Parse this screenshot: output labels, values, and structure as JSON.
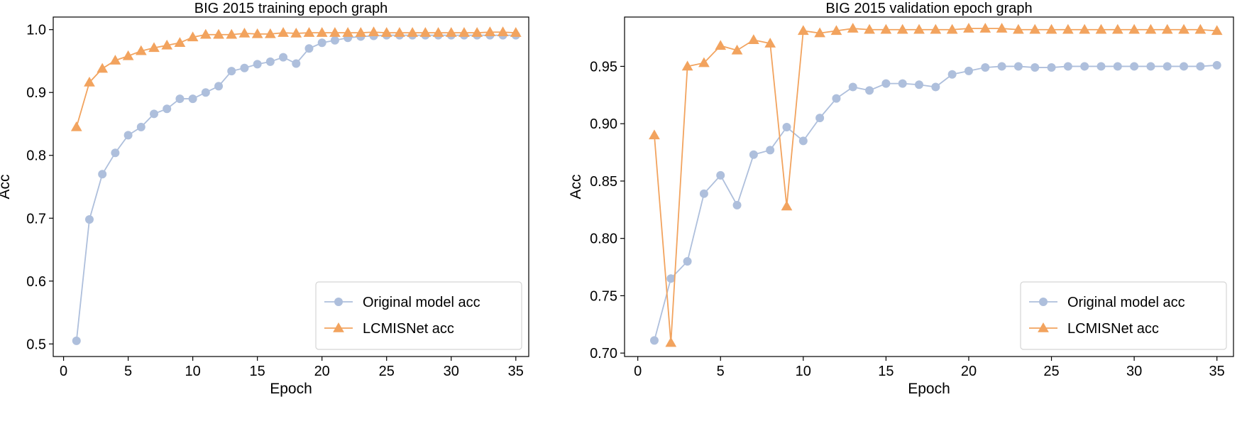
{
  "figure": {
    "background": "#ffffff"
  },
  "chart_data": [
    {
      "type": "line",
      "title": "BIG 2015 training epoch graph",
      "xlabel": "Epoch",
      "ylabel": "Acc",
      "xlim": [
        -0.8,
        36.0
      ],
      "ylim": [
        0.48,
        1.02
      ],
      "xticks": [
        0,
        5,
        10,
        15,
        20,
        25,
        30,
        35
      ],
      "yticks": [
        0.5,
        0.6,
        0.7,
        0.8,
        0.9,
        1.0
      ],
      "ytick_labels": [
        "0.5",
        "0.6",
        "0.7",
        "0.8",
        "0.9",
        "1.0"
      ],
      "grid": false,
      "legend_position": "lower-right",
      "x": [
        1,
        2,
        3,
        4,
        5,
        6,
        7,
        8,
        9,
        10,
        11,
        12,
        13,
        14,
        15,
        16,
        17,
        18,
        19,
        20,
        21,
        22,
        23,
        24,
        25,
        26,
        27,
        28,
        29,
        30,
        31,
        32,
        33,
        34,
        35
      ],
      "series": [
        {
          "name": "Original model acc",
          "color": "#aebfdc",
          "marker": "circle",
          "values": [
            0.505,
            0.698,
            0.77,
            0.804,
            0.832,
            0.845,
            0.866,
            0.874,
            0.89,
            0.89,
            0.9,
            0.91,
            0.934,
            0.939,
            0.945,
            0.949,
            0.956,
            0.946,
            0.97,
            0.979,
            0.983,
            0.987,
            0.989,
            0.99,
            0.991,
            0.991,
            0.991,
            0.991,
            0.991,
            0.991,
            0.991,
            0.991,
            0.991,
            0.991,
            0.991
          ]
        },
        {
          "name": "LCMISNet acc",
          "color": "#f2a35e",
          "marker": "triangle",
          "values": [
            0.845,
            0.916,
            0.938,
            0.951,
            0.958,
            0.966,
            0.971,
            0.975,
            0.979,
            0.988,
            0.992,
            0.992,
            0.992,
            0.994,
            0.993,
            0.993,
            0.995,
            0.994,
            0.995,
            0.995,
            0.995,
            0.995,
            0.995,
            0.996,
            0.995,
            0.995,
            0.995,
            0.995,
            0.995,
            0.995,
            0.995,
            0.995,
            0.996,
            0.996,
            0.995
          ]
        }
      ]
    },
    {
      "type": "line",
      "title": "BIG 2015 validation epoch graph",
      "xlabel": "Epoch",
      "ylabel": "Acc",
      "xlim": [
        -0.8,
        36.0
      ],
      "ylim": [
        0.697,
        0.993
      ],
      "xticks": [
        0,
        5,
        10,
        15,
        20,
        25,
        30,
        35
      ],
      "yticks": [
        0.7,
        0.75,
        0.8,
        0.85,
        0.9,
        0.95
      ],
      "ytick_labels": [
        "0.70",
        "0.75",
        "0.80",
        "0.85",
        "0.90",
        "0.95"
      ],
      "grid": false,
      "legend_position": "lower-right",
      "x": [
        1,
        2,
        3,
        4,
        5,
        6,
        7,
        8,
        9,
        10,
        11,
        12,
        13,
        14,
        15,
        16,
        17,
        18,
        19,
        20,
        21,
        22,
        23,
        24,
        25,
        26,
        27,
        28,
        29,
        30,
        31,
        32,
        33,
        34,
        35
      ],
      "series": [
        {
          "name": "Original model acc",
          "color": "#aebfdc",
          "marker": "circle",
          "values": [
            0.711,
            0.765,
            0.78,
            0.839,
            0.855,
            0.829,
            0.873,
            0.877,
            0.897,
            0.885,
            0.905,
            0.922,
            0.932,
            0.929,
            0.935,
            0.935,
            0.934,
            0.932,
            0.943,
            0.946,
            0.949,
            0.95,
            0.95,
            0.949,
            0.949,
            0.95,
            0.95,
            0.95,
            0.95,
            0.95,
            0.95,
            0.95,
            0.95,
            0.95,
            0.951
          ]
        },
        {
          "name": "LCMISNet acc",
          "color": "#f2a35e",
          "marker": "triangle",
          "values": [
            0.89,
            0.709,
            0.95,
            0.953,
            0.968,
            0.964,
            0.973,
            0.97,
            0.828,
            0.981,
            0.979,
            0.981,
            0.983,
            0.982,
            0.982,
            0.982,
            0.982,
            0.982,
            0.982,
            0.983,
            0.983,
            0.983,
            0.982,
            0.982,
            0.982,
            0.982,
            0.982,
            0.982,
            0.982,
            0.982,
            0.982,
            0.982,
            0.982,
            0.982,
            0.981
          ]
        }
      ]
    }
  ]
}
